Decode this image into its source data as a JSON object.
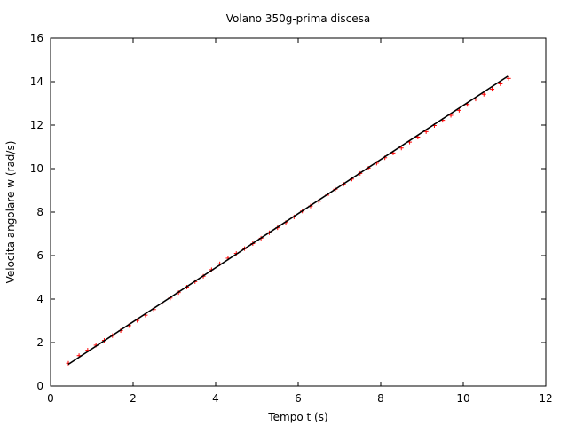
{
  "chart_data": {
    "type": "scatter",
    "title": "Volano 350g-prima discesa",
    "xlabel": "Tempo t (s)",
    "ylabel": "Velocita angolare w (rad/s)",
    "xlim": [
      0,
      12
    ],
    "ylim": [
      0,
      16
    ],
    "xticks": [
      0,
      2,
      4,
      6,
      8,
      10,
      12
    ],
    "yticks": [
      0,
      2,
      4,
      6,
      8,
      10,
      12,
      14,
      16
    ],
    "grid": false,
    "legend": "none",
    "series": [
      {
        "marker": "plus",
        "color": "#ff0000",
        "points": [
          [
            0.43,
            1.05
          ],
          [
            0.69,
            1.4
          ],
          [
            0.9,
            1.65
          ],
          [
            1.1,
            1.88
          ],
          [
            1.3,
            2.1
          ],
          [
            1.5,
            2.32
          ],
          [
            1.7,
            2.55
          ],
          [
            1.9,
            2.78
          ],
          [
            2.1,
            3.02
          ],
          [
            2.3,
            3.26
          ],
          [
            2.5,
            3.52
          ],
          [
            2.7,
            3.78
          ],
          [
            2.9,
            4.05
          ],
          [
            3.1,
            4.3
          ],
          [
            3.3,
            4.55
          ],
          [
            3.5,
            4.8
          ],
          [
            3.7,
            5.05
          ],
          [
            3.9,
            5.35
          ],
          [
            4.1,
            5.62
          ],
          [
            4.3,
            5.88
          ],
          [
            4.5,
            6.1
          ],
          [
            4.7,
            6.32
          ],
          [
            4.9,
            6.55
          ],
          [
            5.1,
            6.8
          ],
          [
            5.3,
            7.05
          ],
          [
            5.5,
            7.28
          ],
          [
            5.7,
            7.52
          ],
          [
            5.9,
            7.78
          ],
          [
            6.1,
            8.05
          ],
          [
            6.3,
            8.28
          ],
          [
            6.5,
            8.5
          ],
          [
            6.7,
            8.78
          ],
          [
            6.9,
            9.05
          ],
          [
            7.1,
            9.28
          ],
          [
            7.3,
            9.52
          ],
          [
            7.5,
            9.78
          ],
          [
            7.7,
            10.02
          ],
          [
            7.9,
            10.25
          ],
          [
            8.1,
            10.5
          ],
          [
            8.3,
            10.72
          ],
          [
            8.5,
            10.95
          ],
          [
            8.7,
            11.22
          ],
          [
            8.9,
            11.45
          ],
          [
            9.1,
            11.7
          ],
          [
            9.3,
            11.98
          ],
          [
            9.5,
            12.22
          ],
          [
            9.7,
            12.45
          ],
          [
            9.9,
            12.68
          ],
          [
            10.1,
            12.95
          ],
          [
            10.3,
            13.2
          ],
          [
            10.5,
            13.42
          ],
          [
            10.7,
            13.65
          ],
          [
            10.9,
            13.9
          ],
          [
            11.1,
            14.15
          ]
        ]
      },
      {
        "type": "line",
        "color": "#000000",
        "points": [
          [
            0.43,
            1.0
          ],
          [
            11.08,
            14.25
          ]
        ]
      }
    ]
  }
}
